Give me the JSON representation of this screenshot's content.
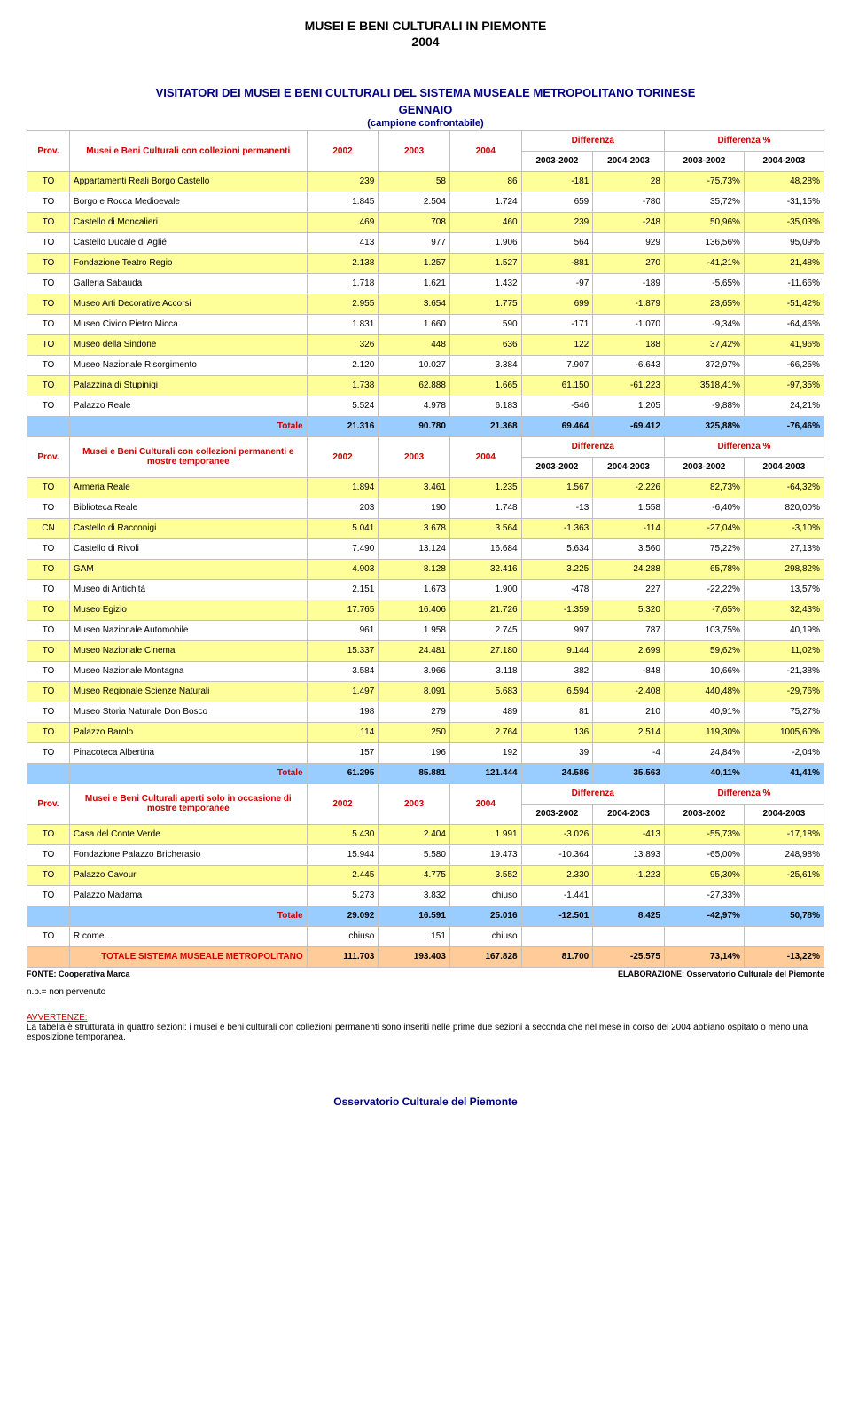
{
  "page_title_line1": "MUSEI E BENI CULTURALI IN PIEMONTE",
  "page_title_line2": "2004",
  "main_title_line1": "VISITATORI DEI MUSEI E BENI CULTURALI DEL SISTEMA MUSEALE METROPOLITANO TORINESE",
  "main_title_line2": "GENNAIO",
  "subtitle": "(campione confrontabile)",
  "labels": {
    "prov": "Prov.",
    "differenza": "Differenza",
    "differenza_pct": "Differenza %",
    "y2002": "2002",
    "y2003": "2003",
    "y2004": "2004",
    "d0302": "2003-2002",
    "d0403": "2004-2003",
    "p0302": "2003-2002",
    "p0403": "2004-2003",
    "totale": "Totale",
    "grand": "TOTALE SISTEMA MUSEALE METROPOLITANO"
  },
  "section_headers": {
    "s1": "Musei e Beni Culturali con collezioni permanenti",
    "s2": "Musei e Beni Culturali con collezioni permanenti e mostre temporanee",
    "s3": "Musei e Beni Culturali aperti solo in occasione di mostre temporanee"
  },
  "section1_rows": [
    {
      "p": "TO",
      "n": "Appartamenti Reali Borgo Castello",
      "v": [
        "239",
        "58",
        "86",
        "-181",
        "28",
        "-75,73%",
        "48,28%"
      ],
      "y": true
    },
    {
      "p": "TO",
      "n": "Borgo e Rocca Medioevale",
      "v": [
        "1.845",
        "2.504",
        "1.724",
        "659",
        "-780",
        "35,72%",
        "-31,15%"
      ],
      "y": false
    },
    {
      "p": "TO",
      "n": "Castello di Moncalieri",
      "v": [
        "469",
        "708",
        "460",
        "239",
        "-248",
        "50,96%",
        "-35,03%"
      ],
      "y": true
    },
    {
      "p": "TO",
      "n": "Castello Ducale di Aglié",
      "v": [
        "413",
        "977",
        "1.906",
        "564",
        "929",
        "136,56%",
        "95,09%"
      ],
      "y": false
    },
    {
      "p": "TO",
      "n": "Fondazione Teatro Regio",
      "v": [
        "2.138",
        "1.257",
        "1.527",
        "-881",
        "270",
        "-41,21%",
        "21,48%"
      ],
      "y": true
    },
    {
      "p": "TO",
      "n": "Galleria Sabauda",
      "v": [
        "1.718",
        "1.621",
        "1.432",
        "-97",
        "-189",
        "-5,65%",
        "-11,66%"
      ],
      "y": false
    },
    {
      "p": "TO",
      "n": "Museo Arti Decorative Accorsi",
      "v": [
        "2.955",
        "3.654",
        "1.775",
        "699",
        "-1.879",
        "23,65%",
        "-51,42%"
      ],
      "y": true
    },
    {
      "p": "TO",
      "n": "Museo Civico Pietro Micca",
      "v": [
        "1.831",
        "1.660",
        "590",
        "-171",
        "-1.070",
        "-9,34%",
        "-64,46%"
      ],
      "y": false
    },
    {
      "p": "TO",
      "n": "Museo della Sindone",
      "v": [
        "326",
        "448",
        "636",
        "122",
        "188",
        "37,42%",
        "41,96%"
      ],
      "y": true
    },
    {
      "p": "TO",
      "n": "Museo Nazionale Risorgimento",
      "v": [
        "2.120",
        "10.027",
        "3.384",
        "7.907",
        "-6.643",
        "372,97%",
        "-66,25%"
      ],
      "y": false
    },
    {
      "p": "TO",
      "n": "Palazzina di Stupinigi",
      "v": [
        "1.738",
        "62.888",
        "1.665",
        "61.150",
        "-61.223",
        "3518,41%",
        "-97,35%"
      ],
      "y": true
    },
    {
      "p": "TO",
      "n": "Palazzo Reale",
      "v": [
        "5.524",
        "4.978",
        "6.183",
        "-546",
        "1.205",
        "-9,88%",
        "24,21%"
      ],
      "y": false
    }
  ],
  "section1_totale": [
    "21.316",
    "90.780",
    "21.368",
    "69.464",
    "-69.412",
    "325,88%",
    "-76,46%"
  ],
  "section2_rows": [
    {
      "p": "TO",
      "n": "Armeria Reale",
      "v": [
        "1.894",
        "3.461",
        "1.235",
        "1.567",
        "-2.226",
        "82,73%",
        "-64,32%"
      ],
      "y": true
    },
    {
      "p": "TO",
      "n": "Biblioteca Reale",
      "v": [
        "203",
        "190",
        "1.748",
        "-13",
        "1.558",
        "-6,40%",
        "820,00%"
      ],
      "y": false
    },
    {
      "p": "CN",
      "n": "Castello di Racconigi",
      "v": [
        "5.041",
        "3.678",
        "3.564",
        "-1.363",
        "-114",
        "-27,04%",
        "-3,10%"
      ],
      "y": true
    },
    {
      "p": "TO",
      "n": "Castello di Rivoli",
      "v": [
        "7.490",
        "13.124",
        "16.684",
        "5.634",
        "3.560",
        "75,22%",
        "27,13%"
      ],
      "y": false
    },
    {
      "p": "TO",
      "n": "GAM",
      "v": [
        "4.903",
        "8.128",
        "32.416",
        "3.225",
        "24.288",
        "65,78%",
        "298,82%"
      ],
      "y": true
    },
    {
      "p": "TO",
      "n": "Museo di Antichità",
      "v": [
        "2.151",
        "1.673",
        "1.900",
        "-478",
        "227",
        "-22,22%",
        "13,57%"
      ],
      "y": false
    },
    {
      "p": "TO",
      "n": "Museo Egizio",
      "v": [
        "17.765",
        "16.406",
        "21.726",
        "-1.359",
        "5.320",
        "-7,65%",
        "32,43%"
      ],
      "y": true
    },
    {
      "p": "TO",
      "n": "Museo Nazionale Automobile",
      "v": [
        "961",
        "1.958",
        "2.745",
        "997",
        "787",
        "103,75%",
        "40,19%"
      ],
      "y": false
    },
    {
      "p": "TO",
      "n": "Museo Nazionale Cinema",
      "v": [
        "15.337",
        "24.481",
        "27.180",
        "9.144",
        "2.699",
        "59,62%",
        "11,02%"
      ],
      "y": true
    },
    {
      "p": "TO",
      "n": "Museo Nazionale Montagna",
      "v": [
        "3.584",
        "3.966",
        "3.118",
        "382",
        "-848",
        "10,66%",
        "-21,38%"
      ],
      "y": false
    },
    {
      "p": "TO",
      "n": "Museo Regionale Scienze Naturali",
      "v": [
        "1.497",
        "8.091",
        "5.683",
        "6.594",
        "-2.408",
        "440,48%",
        "-29,76%"
      ],
      "y": true
    },
    {
      "p": "TO",
      "n": "Museo Storia Naturale Don Bosco",
      "v": [
        "198",
        "279",
        "489",
        "81",
        "210",
        "40,91%",
        "75,27%"
      ],
      "y": false
    },
    {
      "p": "TO",
      "n": "Palazzo Barolo",
      "v": [
        "114",
        "250",
        "2.764",
        "136",
        "2.514",
        "119,30%",
        "1005,60%"
      ],
      "y": true
    },
    {
      "p": "TO",
      "n": "Pinacoteca Albertina",
      "v": [
        "157",
        "196",
        "192",
        "39",
        "-4",
        "24,84%",
        "-2,04%"
      ],
      "y": false
    }
  ],
  "section2_totale": [
    "61.295",
    "85.881",
    "121.444",
    "24.586",
    "35.563",
    "40,11%",
    "41,41%"
  ],
  "section3_rows": [
    {
      "p": "TO",
      "n": "Casa del Conte Verde",
      "v": [
        "5.430",
        "2.404",
        "1.991",
        "-3.026",
        "-413",
        "-55,73%",
        "-17,18%"
      ],
      "y": true
    },
    {
      "p": "TO",
      "n": "Fondazione Palazzo Bricherasio",
      "v": [
        "15.944",
        "5.580",
        "19.473",
        "-10.364",
        "13.893",
        "-65,00%",
        "248,98%"
      ],
      "y": false
    },
    {
      "p": "TO",
      "n": "Palazzo Cavour",
      "v": [
        "2.445",
        "4.775",
        "3.552",
        "2.330",
        "-1.223",
        "95,30%",
        "-25,61%"
      ],
      "y": true
    },
    {
      "p": "TO",
      "n": "Palazzo Madama",
      "v": [
        "5.273",
        "3.832",
        "chiuso",
        "-1.441",
        "",
        "-27,33%",
        ""
      ],
      "y": false
    }
  ],
  "section3_totale": [
    "29.092",
    "16.591",
    "25.016",
    "-12.501",
    "8.425",
    "-42,97%",
    "50,78%"
  ],
  "extra_row": {
    "p": "TO",
    "n": "R come…",
    "v": [
      "chiuso",
      "151",
      "chiuso",
      "",
      "",
      "",
      ""
    ],
    "y": false
  },
  "grand_totale": [
    "111.703",
    "193.403",
    "167.828",
    "81.700",
    "-25.575",
    "73,14%",
    "-13,22%"
  ],
  "footer_left": "FONTE: Cooperativa Marca",
  "footer_right": "ELABORAZIONE: Osservatorio Culturale del Piemonte",
  "np_note": "n.p.= non pervenuto",
  "avvertenze_label": "AVVERTENZE:",
  "avvertenze_text": "La tabella è strutturata in quattro sezioni: i musei e beni culturali con collezioni permanenti sono inseriti nelle prime due sezioni a seconda che nel mese in corso del 2004 abbiano ospitato o meno una esposizione temporanea.",
  "bottom_org": "Osservatorio Culturale del Piemonte"
}
